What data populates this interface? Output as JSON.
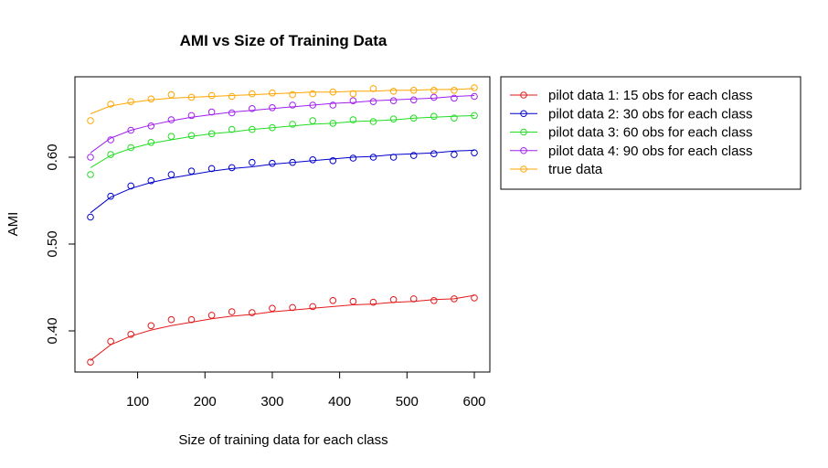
{
  "chart_data": {
    "type": "scatter",
    "title": "AMI vs Size of Training Data",
    "xlabel": "Size of training data for each class",
    "ylabel": "AMI",
    "xlim": [
      30,
      600
    ],
    "ylim": [
      0.36,
      0.685
    ],
    "xticks": [
      100,
      200,
      300,
      400,
      500,
      600
    ],
    "yticks": [
      0.4,
      0.5,
      0.6
    ],
    "xtick_labels": [
      "100",
      "200",
      "300",
      "400",
      "500",
      "600"
    ],
    "ytick_labels": [
      "0.40",
      "0.50",
      "0.60"
    ],
    "grid": false,
    "legend_position": "right",
    "x": [
      30,
      60,
      90,
      120,
      150,
      180,
      210,
      240,
      270,
      300,
      330,
      360,
      390,
      420,
      450,
      480,
      510,
      540,
      570,
      600
    ],
    "series": [
      {
        "name": "pilot data 1: 15 obs for each class",
        "color": "#e31a1c",
        "points": [
          0.364,
          0.388,
          0.396,
          0.406,
          0.413,
          0.413,
          0.418,
          0.422,
          0.421,
          0.426,
          0.427,
          0.428,
          0.435,
          0.434,
          0.433,
          0.436,
          0.437,
          0.435,
          0.437,
          0.438
        ],
        "fit": [
          0.366,
          0.384,
          0.394,
          0.401,
          0.406,
          0.41,
          0.414,
          0.417,
          0.419,
          0.422,
          0.424,
          0.426,
          0.428,
          0.43,
          0.431,
          0.433,
          0.434,
          0.436,
          0.437,
          0.441
        ]
      },
      {
        "name": "pilot data 2: 30 obs for each class",
        "color": "#0000cc",
        "points": [
          0.531,
          0.555,
          0.567,
          0.573,
          0.58,
          0.584,
          0.587,
          0.588,
          0.594,
          0.593,
          0.594,
          0.597,
          0.596,
          0.599,
          0.6,
          0.6,
          0.602,
          0.604,
          0.603,
          0.605
        ],
        "fit": [
          0.536,
          0.554,
          0.564,
          0.571,
          0.576,
          0.58,
          0.584,
          0.587,
          0.589,
          0.592,
          0.594,
          0.596,
          0.598,
          0.6,
          0.601,
          0.603,
          0.604,
          0.605,
          0.607,
          0.608
        ]
      },
      {
        "name": "pilot data 3: 60 obs for each class",
        "color": "#22dd22",
        "points": [
          0.58,
          0.603,
          0.611,
          0.617,
          0.624,
          0.625,
          0.627,
          0.632,
          0.632,
          0.634,
          0.638,
          0.642,
          0.639,
          0.643,
          0.641,
          0.644,
          0.645,
          0.647,
          0.645,
          0.648
        ],
        "fit": [
          0.588,
          0.602,
          0.61,
          0.616,
          0.62,
          0.624,
          0.627,
          0.629,
          0.632,
          0.634,
          0.636,
          0.638,
          0.639,
          0.641,
          0.642,
          0.643,
          0.645,
          0.646,
          0.647,
          0.648
        ]
      },
      {
        "name": "pilot data 4: 90 obs for each class",
        "color": "#a020f0",
        "points": [
          0.6,
          0.62,
          0.631,
          0.636,
          0.643,
          0.648,
          0.652,
          0.651,
          0.656,
          0.657,
          0.66,
          0.66,
          0.66,
          0.665,
          0.664,
          0.665,
          0.666,
          0.669,
          0.668,
          0.67
        ],
        "fit": [
          0.605,
          0.622,
          0.631,
          0.637,
          0.642,
          0.646,
          0.649,
          0.652,
          0.654,
          0.656,
          0.658,
          0.66,
          0.662,
          0.663,
          0.665,
          0.666,
          0.667,
          0.668,
          0.67,
          0.671
        ]
      },
      {
        "name": "true data",
        "color": "#ffa500",
        "points": [
          0.642,
          0.661,
          0.664,
          0.667,
          0.672,
          0.669,
          0.671,
          0.67,
          0.673,
          0.674,
          0.672,
          0.673,
          0.675,
          0.673,
          0.679,
          0.676,
          0.677,
          0.677,
          0.677,
          0.68
        ],
        "fit": [
          0.65,
          0.659,
          0.663,
          0.666,
          0.668,
          0.669,
          0.67,
          0.671,
          0.672,
          0.673,
          0.674,
          0.675,
          0.675,
          0.676,
          0.676,
          0.677,
          0.677,
          0.678,
          0.678,
          0.679
        ]
      }
    ]
  }
}
